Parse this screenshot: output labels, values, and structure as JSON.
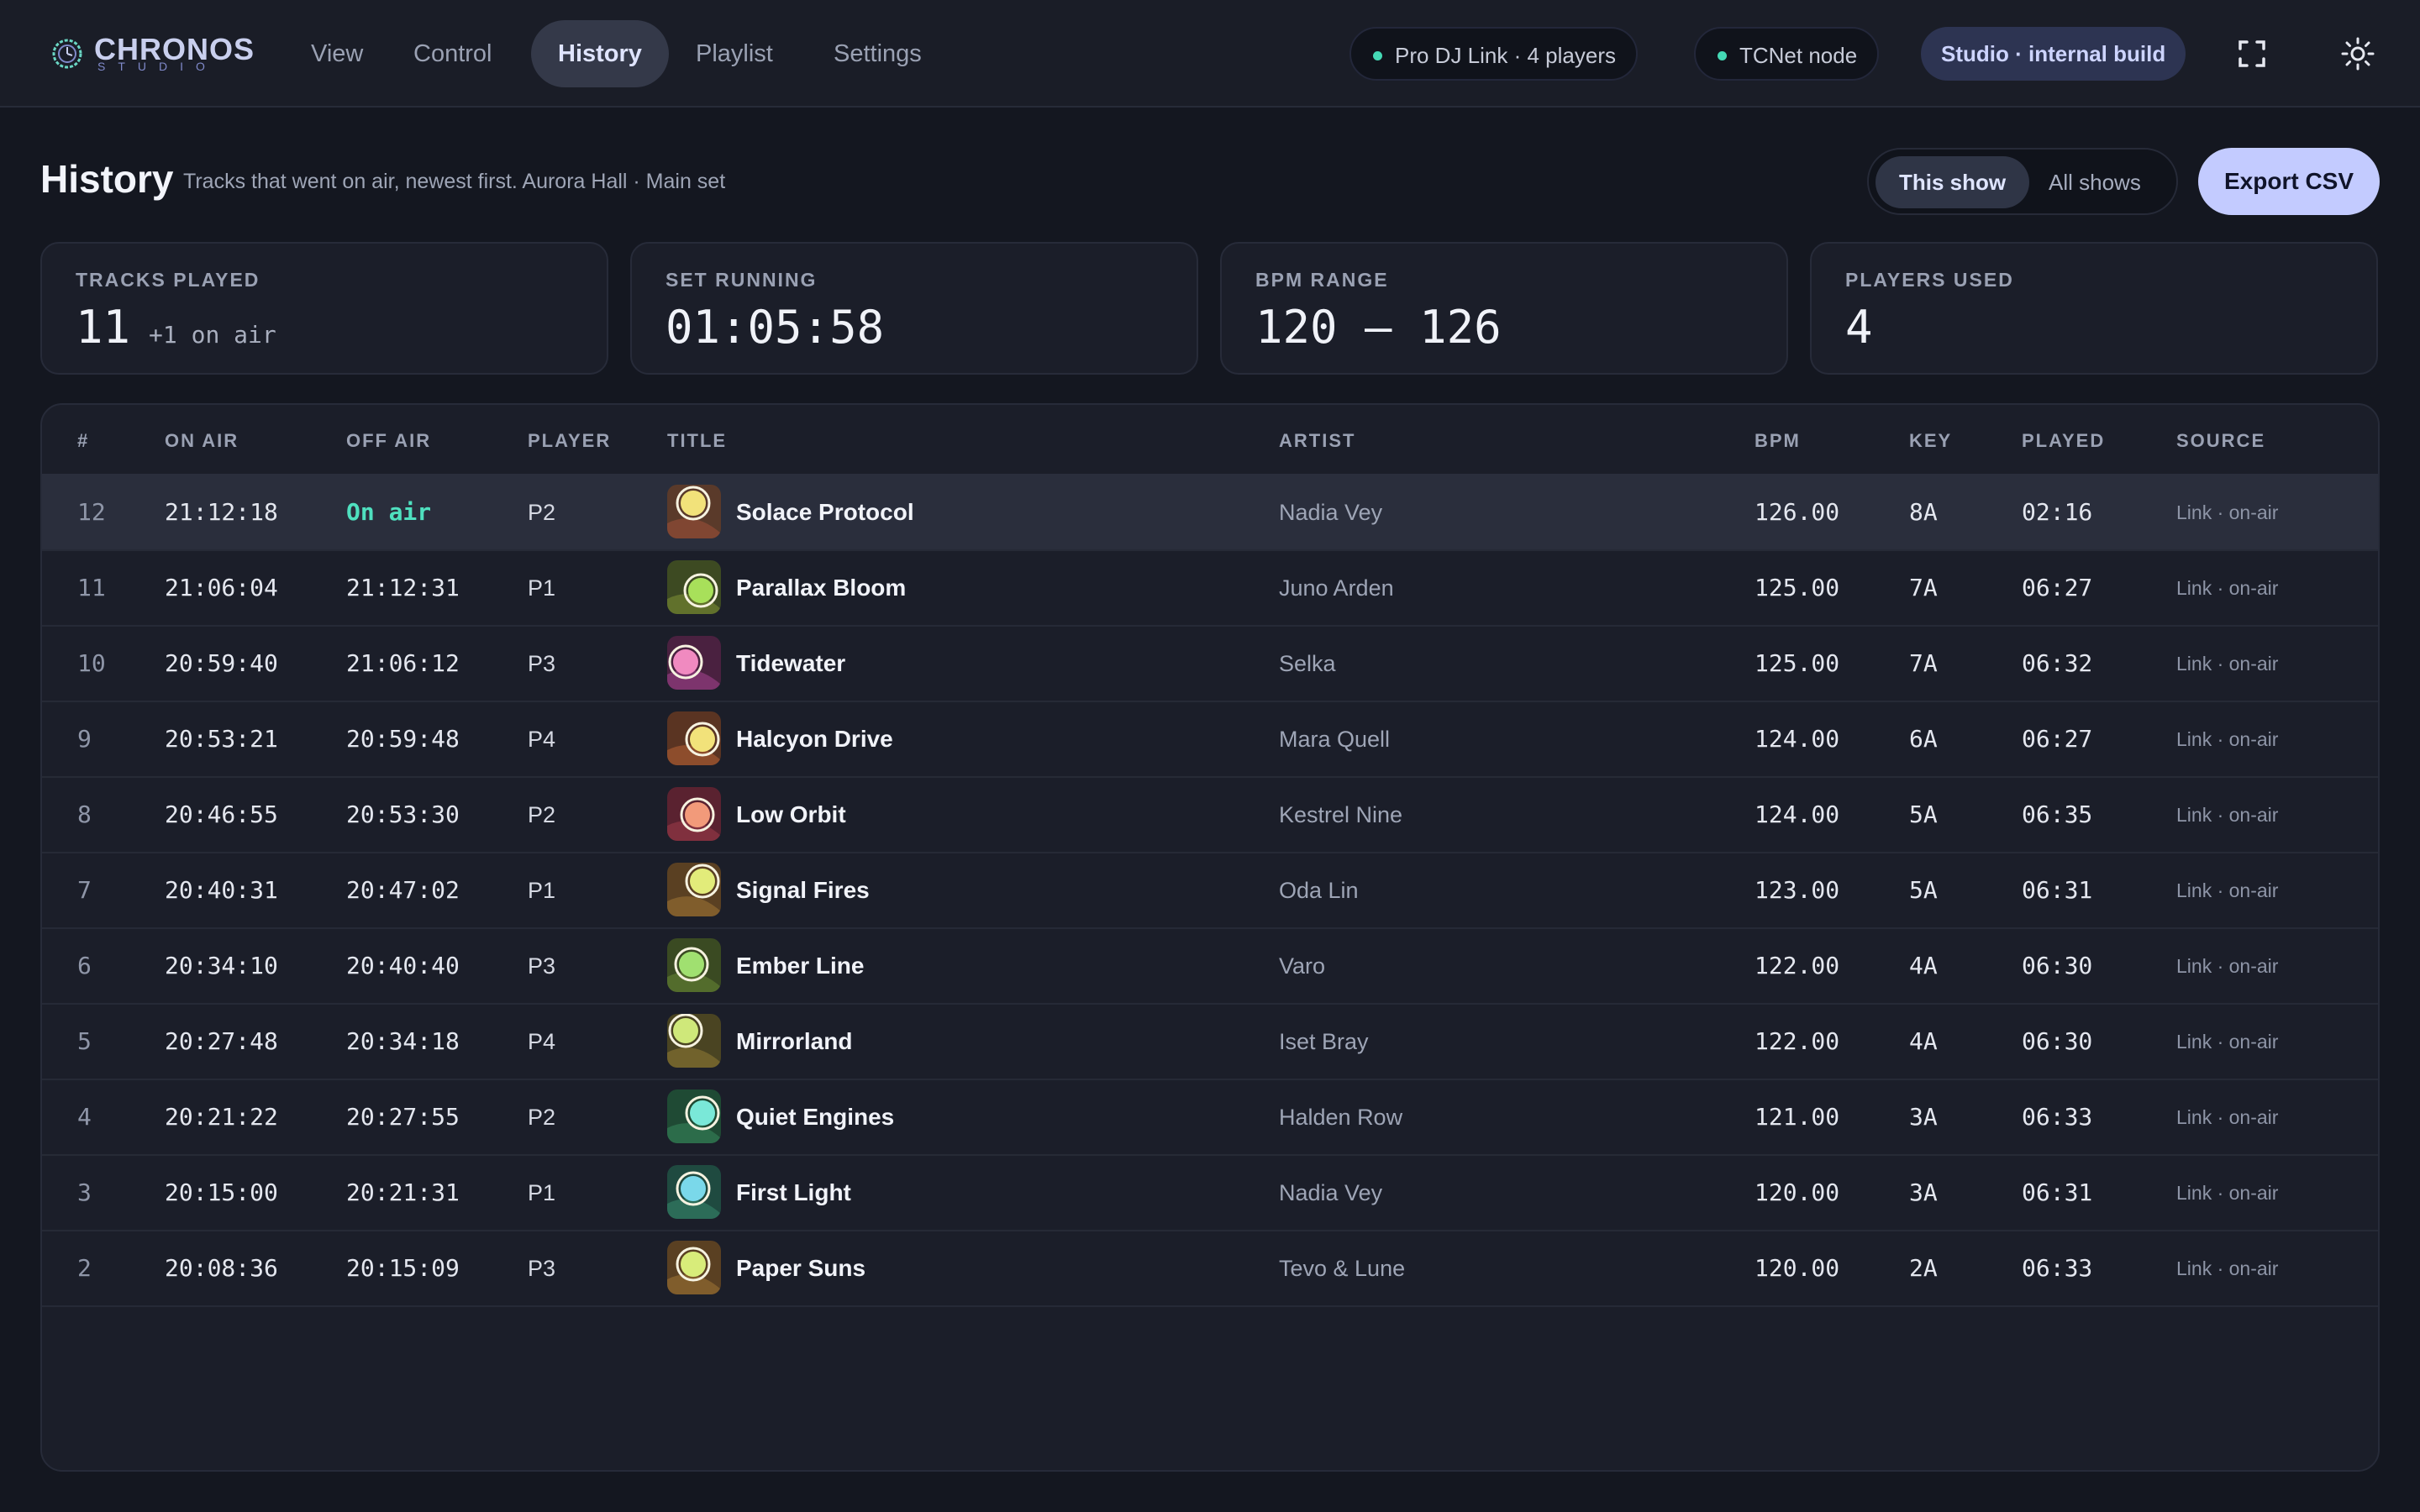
{
  "app": {
    "logo_name": "CHRONOS",
    "logo_sub": "STUDIO"
  },
  "nav": [
    {
      "label": "View",
      "active": false
    },
    {
      "label": "Control",
      "active": false
    },
    {
      "label": "History",
      "active": true
    },
    {
      "label": "Playlist",
      "active": false
    },
    {
      "label": "Settings",
      "active": false
    }
  ],
  "status": {
    "prodj": "Pro DJ Link ·  4  players",
    "tcnet": "TCNet node",
    "build": "Studio · internal build",
    "dot_color": "#44d9b5"
  },
  "icons": {
    "fullscreen": "fullscreen-icon",
    "theme": "sun-icon"
  },
  "page": {
    "title": "History",
    "subtitle": "Tracks that went on air, newest first. Aurora Hall · Main set",
    "scope_options": [
      "This show",
      "All shows"
    ],
    "scope_selected": "This show",
    "export_label": "Export CSV"
  },
  "stats": [
    {
      "label": "TRACKS PLAYED",
      "value": "11",
      "suffix": "+1 on air"
    },
    {
      "label": "SET RUNNING",
      "value": "01:05:58",
      "suffix": ""
    },
    {
      "label": "BPM RANGE",
      "value": "120 – 126",
      "suffix": ""
    },
    {
      "label": "PLAYERS USED",
      "value": "4",
      "suffix": ""
    }
  ],
  "table": {
    "headers": [
      "#",
      "ON AIR",
      "OFF AIR",
      "PLAYER",
      "TITLE",
      "ARTIST",
      "BPM",
      "KEY",
      "PLAYED",
      "SOURCE"
    ],
    "rows": [
      {
        "num": "12",
        "on_air": "21:12:18",
        "off_air": "On air",
        "player": "P2",
        "title": "Solace Protocol",
        "artist": "Nadia Vey",
        "bpm": "126.00",
        "key": "8A",
        "played": "02:16",
        "source": "Link · on-air",
        "art": [
          "#5a3a2a",
          "#f2e27a",
          "#8a4a35"
        ],
        "live": true
      },
      {
        "num": "11",
        "on_air": "21:06:04",
        "off_air": "21:12:31",
        "player": "P1",
        "title": "Parallax Bloom",
        "artist": "Juno Arden",
        "bpm": "125.00",
        "key": "7A",
        "played": "06:27",
        "source": "Link · on-air",
        "art": [
          "#3d4a22",
          "#a8e05a",
          "#6a7a30"
        ],
        "live": false
      },
      {
        "num": "10",
        "on_air": "20:59:40",
        "off_air": "21:06:12",
        "player": "P3",
        "title": "Tidewater",
        "artist": "Selka",
        "bpm": "125.00",
        "key": "7A",
        "played": "06:32",
        "source": "Link · on-air",
        "art": [
          "#4a2140",
          "#f08ac0",
          "#8a3a78"
        ],
        "live": false
      },
      {
        "num": "9",
        "on_air": "20:53:21",
        "off_air": "20:59:48",
        "player": "P4",
        "title": "Halcyon Drive",
        "artist": "Mara Quell",
        "bpm": "124.00",
        "key": "6A",
        "played": "06:27",
        "source": "Link · on-air",
        "art": [
          "#5a3422",
          "#f2e27a",
          "#9a5430"
        ],
        "live": false
      },
      {
        "num": "8",
        "on_air": "20:46:55",
        "off_air": "20:53:30",
        "player": "P2",
        "title": "Low Orbit",
        "artist": "Kestrel Nine",
        "bpm": "124.00",
        "key": "5A",
        "played": "06:35",
        "source": "Link · on-air",
        "art": [
          "#5a2230",
          "#f29a7a",
          "#8a3442"
        ],
        "live": false
      },
      {
        "num": "7",
        "on_air": "20:40:31",
        "off_air": "20:47:02",
        "player": "P1",
        "title": "Signal Fires",
        "artist": "Oda Lin",
        "bpm": "123.00",
        "key": "5A",
        "played": "06:31",
        "source": "Link · on-air",
        "art": [
          "#5a4022",
          "#e2ec7a",
          "#8a6430"
        ],
        "live": false
      },
      {
        "num": "6",
        "on_air": "20:34:10",
        "off_air": "20:40:40",
        "player": "P3",
        "title": "Ember Line",
        "artist": "Varo",
        "bpm": "122.00",
        "key": "4A",
        "played": "06:30",
        "source": "Link · on-air",
        "art": [
          "#3a4a22",
          "#a0e070",
          "#5a7430"
        ],
        "live": false
      },
      {
        "num": "5",
        "on_air": "20:27:48",
        "off_air": "20:34:18",
        "player": "P4",
        "title": "Mirrorland",
        "artist": "Iset Bray",
        "bpm": "122.00",
        "key": "4A",
        "played": "06:30",
        "source": "Link · on-air",
        "art": [
          "#4a4422",
          "#cfe87a",
          "#7a6a30"
        ],
        "live": false
      },
      {
        "num": "4",
        "on_air": "20:21:22",
        "off_air": "20:27:55",
        "player": "P2",
        "title": "Quiet Engines",
        "artist": "Halden Row",
        "bpm": "121.00",
        "key": "3A",
        "played": "06:33",
        "source": "Link · on-air",
        "art": [
          "#1f4a34",
          "#7ae8d8",
          "#2f7450"
        ],
        "live": false
      },
      {
        "num": "3",
        "on_air": "20:15:00",
        "off_air": "20:21:31",
        "player": "P1",
        "title": "First Light",
        "artist": "Nadia Vey",
        "bpm": "120.00",
        "key": "3A",
        "played": "06:31",
        "source": "Link · on-air",
        "art": [
          "#1f4a40",
          "#7ad8ea",
          "#2f745e"
        ],
        "live": false
      },
      {
        "num": "2",
        "on_air": "20:08:36",
        "off_air": "20:15:09",
        "player": "P3",
        "title": "Paper Suns",
        "artist": "Tevo & Lune",
        "bpm": "120.00",
        "key": "2A",
        "played": "06:33",
        "source": "Link · on-air",
        "art": [
          "#5a4022",
          "#d8ec7a",
          "#8a6430"
        ],
        "live": false
      }
    ]
  }
}
